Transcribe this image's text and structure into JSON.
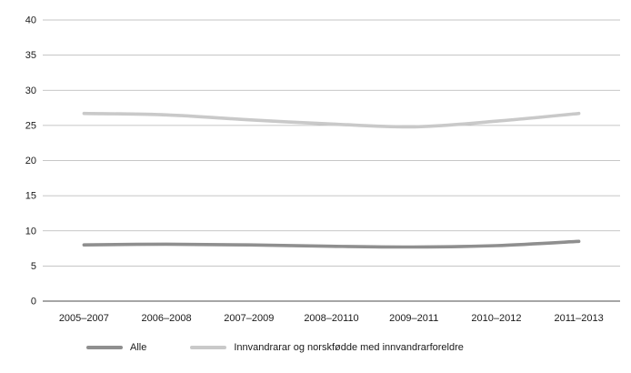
{
  "chart_data": {
    "type": "line",
    "categories": [
      "2005–2007",
      "2006–2008",
      "2007–2009",
      "2008–20110",
      "2009–2011",
      "2010–2012",
      "2011–2013"
    ],
    "series": [
      {
        "name": "Alle",
        "color": "#8f8f8f",
        "values": [
          8.0,
          8.1,
          8.0,
          7.8,
          7.7,
          7.9,
          8.5
        ]
      },
      {
        "name": "Innvandrarar og norskfødde med innvandrarforeldre",
        "color": "#c9c9c9",
        "values": [
          26.7,
          26.5,
          25.8,
          25.2,
          24.8,
          25.6,
          26.7
        ]
      }
    ],
    "title": "",
    "xlabel": "",
    "ylabel": "",
    "ylim": [
      0,
      40
    ],
    "ytick_step": 5,
    "grid": true,
    "legend_position": "bottom",
    "colors": {
      "gridline": "#b3b3b3",
      "baseline": "#4d4d4d",
      "text": "#1a1a1a"
    }
  }
}
